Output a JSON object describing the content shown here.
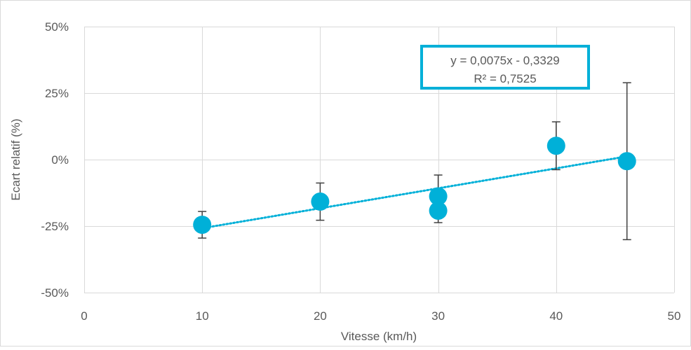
{
  "chart_data": {
    "type": "scatter",
    "title": "",
    "xlabel": "Vitesse (km/h)",
    "ylabel": "Ecart relatif (%)",
    "xlim": [
      0,
      50
    ],
    "ylim": [
      -0.5,
      0.5
    ],
    "x_ticks": [
      0,
      10,
      20,
      30,
      40,
      50
    ],
    "x_tick_labels": [
      "0",
      "10",
      "20",
      "30",
      "40",
      "50"
    ],
    "y_ticks": [
      0.5,
      0.25,
      0,
      -0.25,
      -0.5
    ],
    "y_tick_labels": [
      "50%",
      "25%",
      "0%",
      "-25%",
      "-50%"
    ],
    "grid": true,
    "colors": {
      "marker": "#00B0D8",
      "trendline": "#00B0D8",
      "error_bar": "#404040",
      "grid": "#D9D9D9",
      "annotation_border": "#00B0D8"
    },
    "series": [
      {
        "points": [
          {
            "x": 10,
            "y": -0.245,
            "err_low": 0.05,
            "err_high": 0.05
          },
          {
            "x": 20,
            "y": -0.158,
            "err_low": 0.07,
            "err_high": 0.07
          },
          {
            "x": 30,
            "y": -0.138,
            "err_low": 0.08,
            "err_high": 0.08
          },
          {
            "x": 30,
            "y": -0.192,
            "err_low": 0.045,
            "err_high": 0.045
          },
          {
            "x": 40,
            "y": 0.052,
            "err_low": 0.09,
            "err_high": 0.09
          },
          {
            "x": 46,
            "y": -0.006,
            "err_low": 0.295,
            "err_high": 0.295
          }
        ]
      }
    ],
    "trendline": {
      "type": "linear",
      "slope": 0.0075,
      "intercept": -0.3329,
      "x_range": [
        10,
        46
      ]
    },
    "annotation": {
      "line1": "y = 0,0075x - 0,3329",
      "line2": "R² = 0,7525"
    }
  }
}
